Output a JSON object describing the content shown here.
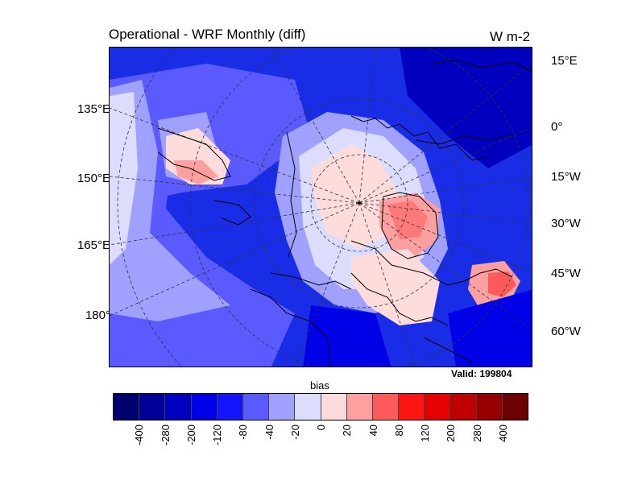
{
  "title": "Operational - WRF Monthly (diff)",
  "units": "W m-2",
  "valid_label": "Valid: 199804",
  "colorbar_label": "bias",
  "left_labels": [
    "135°E",
    "150°E",
    "165°E",
    "180°"
  ],
  "right_labels": [
    "15°E",
    "0°",
    "15°W",
    "30°W",
    "45°W",
    "60°W"
  ],
  "colorbar": {
    "ticks": [
      "-400",
      "-280",
      "-200",
      "-120",
      "-80",
      "-40",
      "-20",
      "0",
      "20",
      "40",
      "80",
      "120",
      "200",
      "280",
      "400"
    ],
    "colors": [
      "#00006e",
      "#000096",
      "#0000be",
      "#0000e6",
      "#1414ff",
      "#5a5aff",
      "#a0a0ff",
      "#dcdcff",
      "#ffdcdc",
      "#ffa0a0",
      "#ff5a5a",
      "#ff1414",
      "#e60000",
      "#be0000",
      "#960000",
      "#6e0000"
    ]
  },
  "map": {
    "projection": "north-polar-stereographic",
    "field": "bias",
    "features": [
      "coastlines",
      "lat-lon-grid-dashed"
    ]
  }
}
